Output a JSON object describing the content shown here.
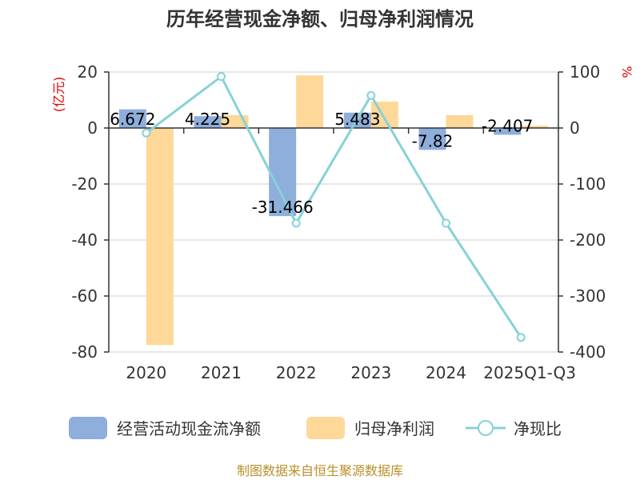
{
  "chart_data": {
    "type": "bar",
    "title": "历年经营现金净额、归母净利润情况",
    "categories": [
      "2020",
      "2021",
      "2022",
      "2023",
      "2024",
      "2025Q1-Q3"
    ],
    "series": [
      {
        "name": "经营活动现金流净额",
        "type": "bar",
        "axis": "left",
        "values": [
          6.672,
          4.225,
          -31.466,
          5.483,
          -7.82,
          -2.407
        ],
        "labels": [
          "6.672",
          "4.225",
          "-31.466",
          "5.483",
          "-7.82",
          "-2.407"
        ],
        "color": "#8eaedb"
      },
      {
        "name": "归母净利润",
        "type": "bar",
        "axis": "left",
        "values": [
          -77.5,
          4.6,
          18.8,
          9.4,
          4.6,
          0.8
        ],
        "color": "#fdd898"
      },
      {
        "name": "净现比",
        "type": "line",
        "axis": "right",
        "values": [
          -9,
          92,
          -170,
          58,
          -170,
          -374
        ],
        "color": "#86d2d8"
      }
    ],
    "left_axis": {
      "unit": "(亿元)",
      "min": -80,
      "max": 20,
      "ticks": [
        20,
        0,
        -20,
        -40,
        -60,
        -80
      ]
    },
    "right_axis": {
      "unit": "%",
      "min": -400,
      "max": 100,
      "ticks": [
        100,
        0,
        -100,
        -200,
        -300,
        -400
      ]
    },
    "grid": true,
    "legend_position": "bottom"
  },
  "source": "制图数据来自恒生聚源数据库"
}
